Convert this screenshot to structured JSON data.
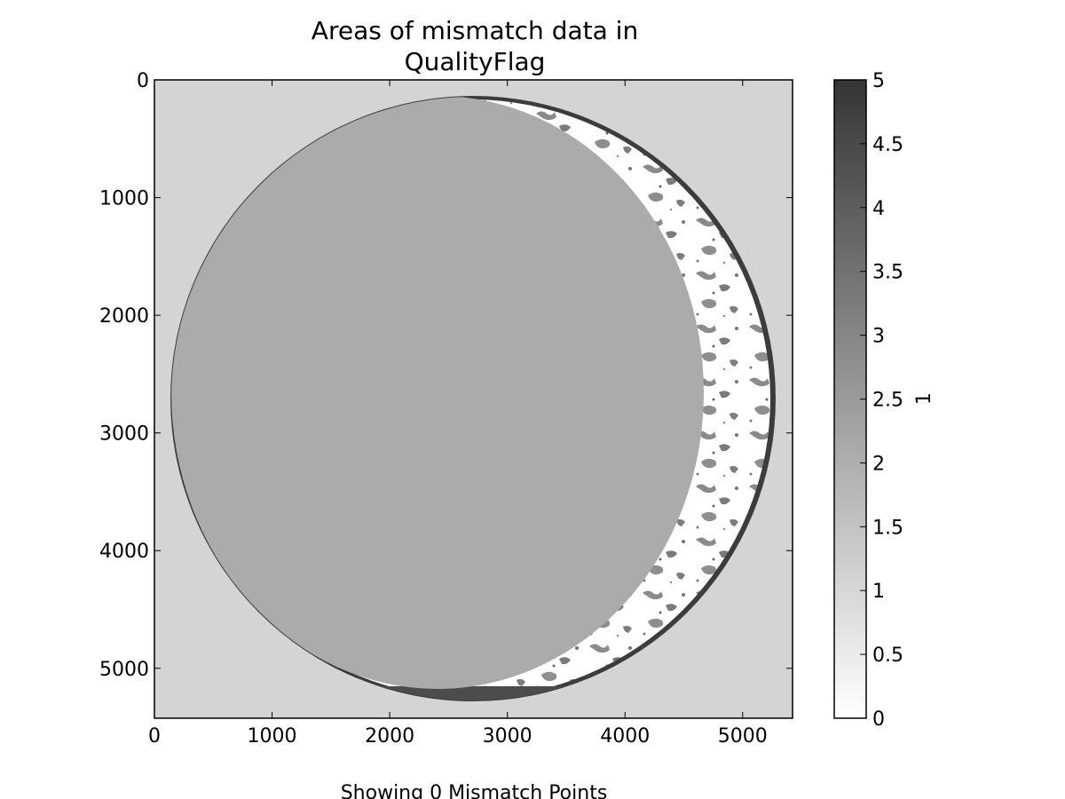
{
  "chart_data": {
    "type": "heatmap",
    "title_lines": [
      "Areas of mismatch data in",
      "QualityFlag"
    ],
    "x_ticks": [
      0,
      1000,
      2000,
      3000,
      4000,
      5000
    ],
    "y_ticks": [
      0,
      1000,
      2000,
      3000,
      4000,
      5000
    ],
    "x_range": [
      0,
      5424
    ],
    "y_range": [
      5424,
      0
    ],
    "grid": false,
    "colormap": "grayscale",
    "colors": {
      "background_value_color": "#d4d4d4",
      "disk_fill": "#ababab",
      "night_band": "#4c4c4c",
      "mismatch_low": "#ffffff",
      "mismatch_mid": "#888888"
    },
    "colorbar": {
      "label": "1",
      "range": [
        0,
        5
      ],
      "ticks": [
        "0",
        "0.5",
        "1",
        "1.5",
        "2",
        "2.5",
        "3",
        "3.5",
        "4",
        "4.5",
        "5"
      ]
    },
    "caption": "Showing 0 Mismatch Points"
  }
}
